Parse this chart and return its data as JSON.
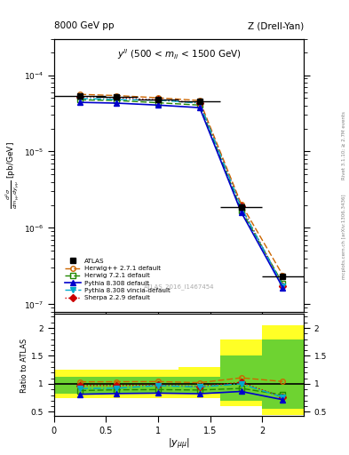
{
  "title_left": "8000 GeV pp",
  "title_right": "Z (Drell-Yan)",
  "annotation": "$y^{ll}$ (500 < $m_{ll}$ < 1500 GeV)",
  "watermark": "ATLAS_2016_I1467454",
  "xlabel": "$|y_{\\mu\\mu}|$",
  "ylabel_ratio": "Ratio to ATLAS",
  "x_values": [
    0.25,
    0.6,
    1.0,
    1.4,
    1.8,
    2.2
  ],
  "x_err": [
    0.25,
    0.2,
    0.2,
    0.2,
    0.2,
    0.2
  ],
  "atlas_y": [
    5.4e-05,
    5.2e-05,
    4.85e-05,
    4.55e-05,
    1.85e-06,
    2.3e-07
  ],
  "herwig1_y": [
    5.6e-05,
    5.4e-05,
    5.05e-05,
    4.65e-05,
    2.05e-06,
    2.4e-07
  ],
  "herwig2_y": [
    4.75e-05,
    4.65e-05,
    4.35e-05,
    4.05e-05,
    1.7e-06,
    1.85e-07
  ],
  "pythia1_y": [
    4.4e-05,
    4.3e-05,
    4.05e-05,
    3.75e-05,
    1.6e-06,
    1.65e-07
  ],
  "pythia2_y": [
    4.95e-05,
    4.8e-05,
    4.7e-05,
    4.3e-05,
    1.85e-06,
    1.75e-07
  ],
  "sherpa_y": [
    5.25e-05,
    5.05e-05,
    4.75e-05,
    4.35e-05,
    1.9e-06,
    1.75e-07
  ],
  "ratio_herwig1": [
    1.037,
    1.038,
    1.041,
    1.022,
    1.108,
    1.043
  ],
  "ratio_herwig2": [
    0.88,
    0.894,
    0.897,
    0.89,
    0.919,
    0.804
  ],
  "ratio_pythia1": [
    0.815,
    0.827,
    0.835,
    0.824,
    0.865,
    0.717
  ],
  "ratio_pythia2": [
    0.917,
    0.923,
    0.969,
    0.945,
    1.0,
    0.761
  ],
  "ratio_sherpa": [
    0.972,
    0.971,
    0.979,
    0.956,
    1.027,
    0.761
  ],
  "band_x_edges": [
    0.0,
    0.4,
    0.8,
    1.2,
    1.6,
    2.0,
    2.4
  ],
  "band_yellow": [
    [
      0.75,
      1.25
    ],
    [
      0.75,
      1.25
    ],
    [
      0.75,
      1.25
    ],
    [
      0.75,
      1.3
    ],
    [
      0.6,
      1.8
    ],
    [
      0.45,
      2.05
    ]
  ],
  "band_green": [
    [
      0.83,
      1.12
    ],
    [
      0.83,
      1.12
    ],
    [
      0.83,
      1.12
    ],
    [
      0.83,
      1.12
    ],
    [
      0.7,
      1.5
    ],
    [
      0.55,
      1.8
    ]
  ],
  "ylim_main": [
    8e-08,
    0.0003
  ],
  "ylim_ratio": [
    0.42,
    2.25
  ],
  "xlim": [
    0.0,
    2.4
  ],
  "yticks_ratio": [
    0.5,
    1.0,
    1.5,
    2.0
  ],
  "xticks": [
    0,
    0.5,
    1.0,
    1.5,
    2.0
  ],
  "colors": {
    "atlas": "#000000",
    "herwig1": "#cc6600",
    "herwig2": "#228800",
    "pythia1": "#0000cc",
    "pythia2": "#00aacc",
    "sherpa": "#cc0000"
  }
}
